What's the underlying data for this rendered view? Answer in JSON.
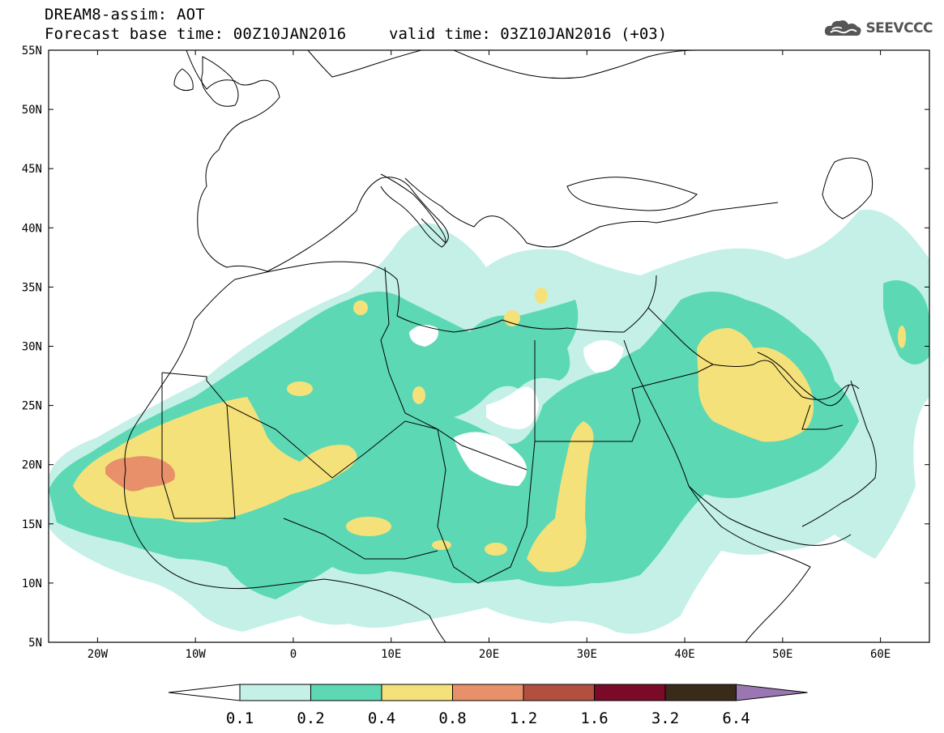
{
  "header": {
    "title_line1": "DREAM8-assim: AOT",
    "title_line2": "Forecast base time: 00Z10JAN2016",
    "valid_time": "valid time: 03Z10JAN2016 (+03)",
    "logo_text": "SEEVCCC"
  },
  "map": {
    "lat_labels": [
      "55N",
      "50N",
      "45N",
      "40N",
      "35N",
      "30N",
      "25N",
      "20N",
      "15N",
      "10N",
      "5N"
    ],
    "lon_labels": [
      "20W",
      "10W",
      "0",
      "10E",
      "20E",
      "30E",
      "40E",
      "50E",
      "60E"
    ],
    "lat_range": [
      5,
      55
    ],
    "lon_range": [
      -25,
      65
    ]
  },
  "legend": {
    "labels": [
      "0.1",
      "0.2",
      "0.4",
      "0.8",
      "1.2",
      "1.6",
      "3.2",
      "6.4"
    ],
    "colors": [
      "#ffffff",
      "#c4f0e8",
      "#5cd9b4",
      "#f5e17a",
      "#e8906a",
      "#b24f3e",
      "#7a0a28",
      "#3a2a1a",
      "#9a77b2"
    ]
  },
  "colors": {
    "aot_01": "#c4f0e8",
    "aot_02": "#5cd9b4",
    "aot_04": "#f5e17a",
    "aot_08": "#e8906a"
  }
}
